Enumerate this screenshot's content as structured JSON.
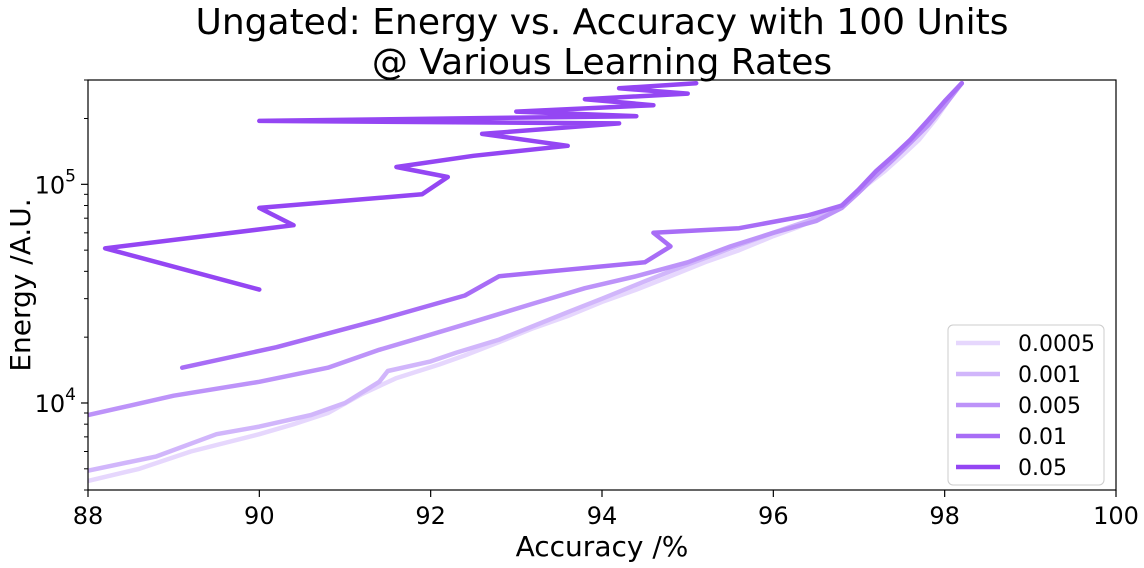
{
  "chart_data": {
    "type": "line",
    "title_line1": "Ungated: Energy vs. Accuracy with 100 Units",
    "title_line2": "@ Various Learning Rates",
    "xlabel": "Accuracy /%",
    "ylabel": "Energy /A.U.",
    "xlim": [
      88,
      100
    ],
    "ylim": [
      4000,
      300000
    ],
    "yscale": "log",
    "x_ticks": [
      "88",
      "90",
      "92",
      "94",
      "96",
      "98",
      "100"
    ],
    "y_ticks": [
      {
        "value": 10000,
        "base": "10",
        "exp": "4"
      },
      {
        "value": 100000,
        "base": "10",
        "exp": "5"
      }
    ],
    "legend_position": "lower-right",
    "grid": false,
    "series": [
      {
        "name": "0.0005",
        "color": "#e6d7fd",
        "points": [
          [
            88.0,
            4400
          ],
          [
            88.6,
            5000
          ],
          [
            89.2,
            6000
          ],
          [
            90.0,
            7200
          ],
          [
            90.4,
            8000
          ],
          [
            90.8,
            9000
          ],
          [
            91.2,
            11000
          ],
          [
            91.6,
            13000
          ],
          [
            92.1,
            15000
          ],
          [
            92.4,
            16500
          ],
          [
            92.8,
            19000
          ],
          [
            93.2,
            22000
          ],
          [
            93.6,
            25000
          ],
          [
            94.0,
            29000
          ],
          [
            94.4,
            33000
          ],
          [
            94.8,
            38000
          ],
          [
            95.2,
            44000
          ],
          [
            95.6,
            50000
          ],
          [
            96.0,
            58000
          ],
          [
            96.3,
            64000
          ],
          [
            96.6,
            72000
          ],
          [
            96.9,
            85000
          ],
          [
            97.1,
            100000
          ],
          [
            97.3,
            115000
          ],
          [
            97.5,
            135000
          ],
          [
            97.7,
            160000
          ],
          [
            97.9,
            200000
          ],
          [
            98.1,
            260000
          ],
          [
            98.2,
            290000
          ]
        ]
      },
      {
        "name": "0.001",
        "color": "#d1b6fb",
        "points": [
          [
            88.0,
            4900
          ],
          [
            88.8,
            5700
          ],
          [
            89.5,
            7200
          ],
          [
            90.0,
            7800
          ],
          [
            90.6,
            8800
          ],
          [
            91.0,
            10000
          ],
          [
            91.4,
            12500
          ],
          [
            91.5,
            14000
          ],
          [
            92.0,
            15500
          ],
          [
            92.3,
            17000
          ],
          [
            92.8,
            19500
          ],
          [
            93.2,
            22500
          ],
          [
            93.6,
            26000
          ],
          [
            94.0,
            30000
          ],
          [
            94.5,
            36000
          ],
          [
            95.0,
            43000
          ],
          [
            95.5,
            51000
          ],
          [
            96.0,
            60000
          ],
          [
            96.4,
            68000
          ],
          [
            96.8,
            80000
          ],
          [
            97.0,
            95000
          ],
          [
            97.2,
            110000
          ],
          [
            97.4,
            130000
          ],
          [
            97.6,
            155000
          ],
          [
            97.8,
            190000
          ],
          [
            98.0,
            240000
          ],
          [
            98.2,
            290000
          ]
        ]
      },
      {
        "name": "0.005",
        "color": "#bd93f9",
        "points": [
          [
            88.0,
            8800
          ],
          [
            89.0,
            10800
          ],
          [
            90.0,
            12500
          ],
          [
            90.8,
            14500
          ],
          [
            91.4,
            17500
          ],
          [
            91.9,
            20000
          ],
          [
            92.5,
            23500
          ],
          [
            93.2,
            28500
          ],
          [
            93.8,
            33500
          ],
          [
            94.4,
            38000
          ],
          [
            95.0,
            44000
          ],
          [
            95.5,
            52000
          ],
          [
            96.0,
            60000
          ],
          [
            96.5,
            68000
          ],
          [
            96.8,
            78000
          ],
          [
            97.0,
            92000
          ],
          [
            97.2,
            110000
          ],
          [
            97.4,
            130000
          ],
          [
            97.6,
            155000
          ],
          [
            97.8,
            185000
          ],
          [
            98.0,
            230000
          ],
          [
            98.2,
            290000
          ]
        ]
      },
      {
        "name": "0.01",
        "color": "#a86df6",
        "points": [
          [
            89.1,
            14500
          ],
          [
            90.2,
            18000
          ],
          [
            91.4,
            24000
          ],
          [
            92.4,
            31000
          ],
          [
            92.8,
            38000
          ],
          [
            94.5,
            44000
          ],
          [
            94.8,
            52000
          ],
          [
            94.6,
            60000
          ],
          [
            95.6,
            63000
          ],
          [
            96.4,
            72000
          ],
          [
            96.8,
            80000
          ],
          [
            97.0,
            95000
          ],
          [
            97.2,
            115000
          ],
          [
            97.4,
            135000
          ],
          [
            97.6,
            160000
          ],
          [
            97.8,
            195000
          ],
          [
            98.0,
            240000
          ],
          [
            98.2,
            290000
          ]
        ]
      },
      {
        "name": "0.05",
        "color": "#9446f3",
        "points": [
          [
            90.0,
            33000
          ],
          [
            88.2,
            51000
          ],
          [
            90.4,
            65000
          ],
          [
            90.0,
            78000
          ],
          [
            91.9,
            90000
          ],
          [
            92.2,
            108000
          ],
          [
            91.6,
            120000
          ],
          [
            92.5,
            135000
          ],
          [
            93.6,
            150000
          ],
          [
            92.6,
            170000
          ],
          [
            94.2,
            190000
          ],
          [
            90.0,
            195000
          ],
          [
            94.4,
            205000
          ],
          [
            93.0,
            215000
          ],
          [
            94.6,
            230000
          ],
          [
            93.8,
            245000
          ],
          [
            95.0,
            260000
          ],
          [
            94.2,
            275000
          ],
          [
            95.1,
            290000
          ]
        ]
      }
    ]
  }
}
